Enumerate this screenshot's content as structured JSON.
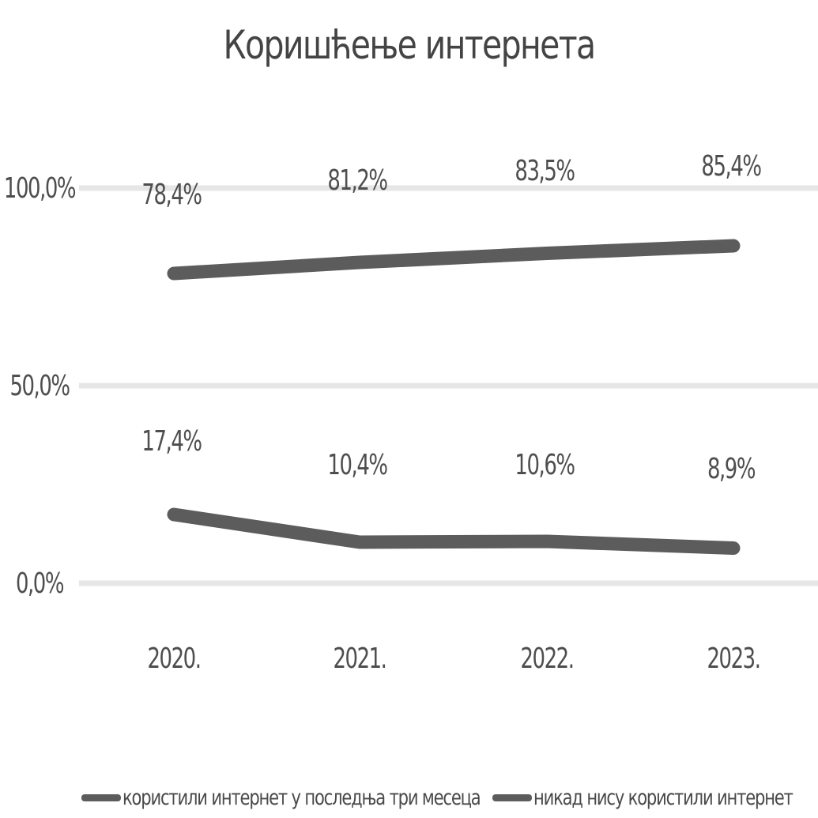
{
  "chart_data": {
    "type": "line",
    "title": "Коришћење интернета",
    "categories": [
      "2020.",
      "2021.",
      "2022.",
      "2023."
    ],
    "series": [
      {
        "name": "користили интернет у последња три месеца",
        "values": [
          78.4,
          81.2,
          83.5,
          85.4
        ],
        "labels": [
          "78,4%",
          "81,2%",
          "83,5%",
          "85,4%"
        ]
      },
      {
        "name": "никад нису користили интернет",
        "values": [
          17.4,
          10.4,
          10.6,
          8.9
        ],
        "labels": [
          "17,4%",
          "10,4%",
          "10,6%",
          "8,9%"
        ]
      }
    ],
    "y_ticks": [
      "0,0%",
      "50,0%",
      "100,0%"
    ],
    "ylim": [
      0,
      100
    ],
    "grid": true,
    "legend": "bottom",
    "colors": {
      "series": "#5c5c5c",
      "grid": "#e6e6e6",
      "text": "#4a4a4a"
    }
  }
}
